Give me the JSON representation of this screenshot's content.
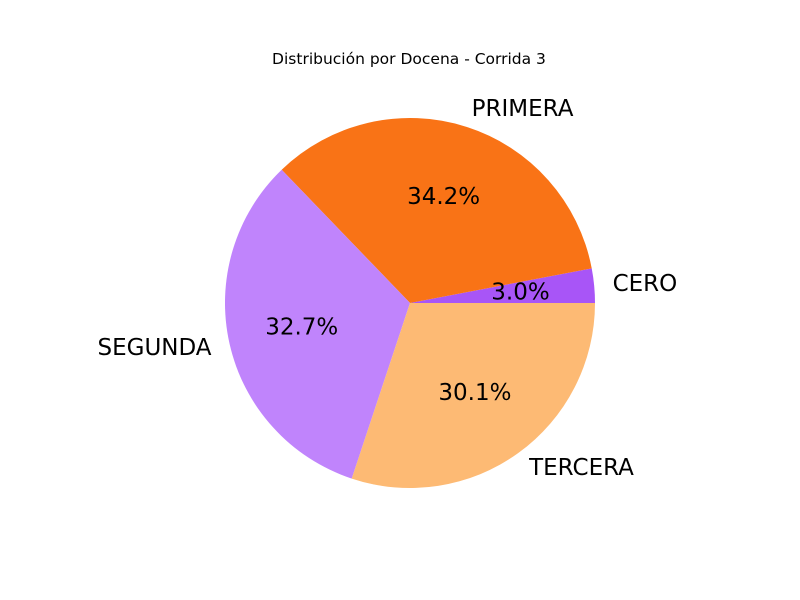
{
  "chart_data": {
    "type": "pie",
    "title": "Distribución por Docena - Corrida 3",
    "start_angle_deg": 0,
    "direction": "counterclockwise",
    "slices": [
      {
        "label": "CERO",
        "value": 3.0,
        "pct_label": "3.0%",
        "color": "#a855f7"
      },
      {
        "label": "PRIMERA",
        "value": 34.2,
        "pct_label": "34.2%",
        "color": "#f97316"
      },
      {
        "label": "SEGUNDA",
        "value": 32.7,
        "pct_label": "32.7%",
        "color": "#c084fc"
      },
      {
        "label": "TERCERA",
        "value": 30.1,
        "pct_label": "30.1%",
        "color": "#fdba74"
      }
    ]
  }
}
